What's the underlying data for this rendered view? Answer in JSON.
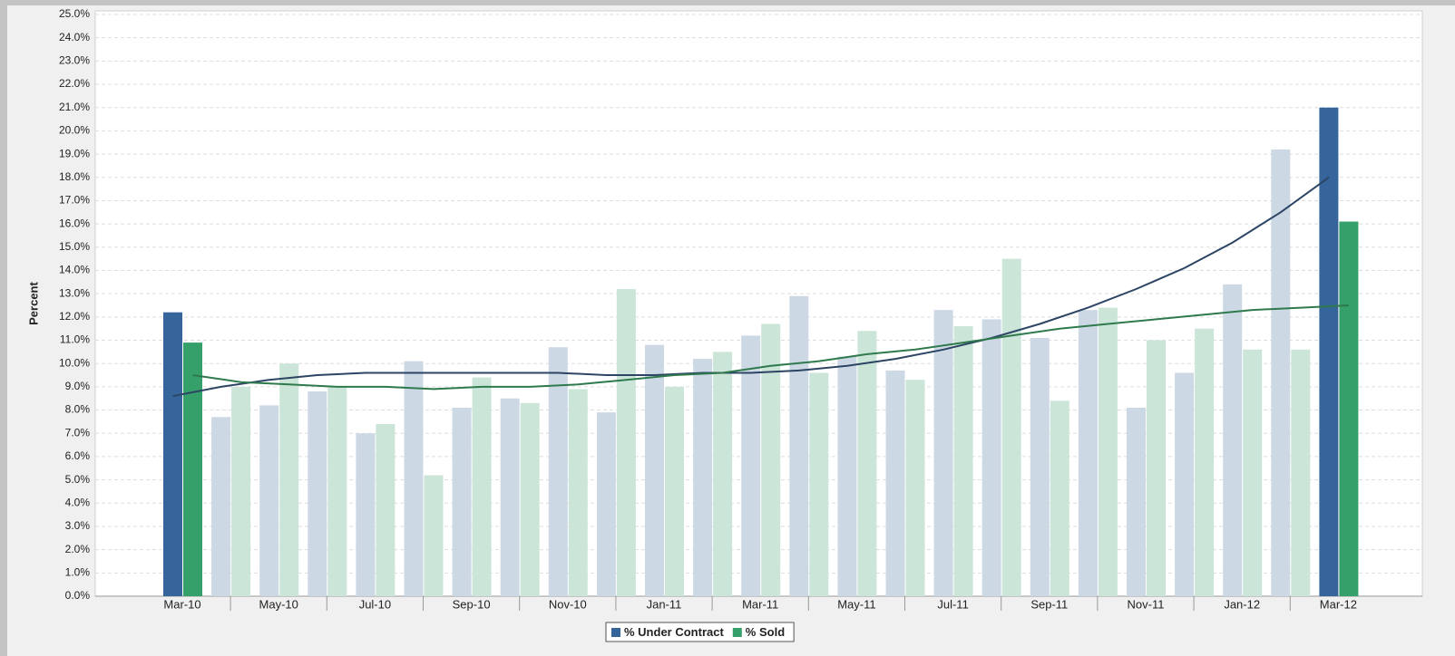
{
  "chart_data": {
    "type": "bar",
    "y_label": "Percent",
    "categories": [
      "Mar-10",
      null,
      "May-10",
      null,
      "Jul-10",
      null,
      "Sep-10",
      null,
      "Nov-10",
      null,
      "Jan-11",
      null,
      "Mar-11",
      null,
      "May-11",
      null,
      "Jul-11",
      null,
      "Sep-11",
      null,
      "Nov-11",
      null,
      "Jan-12",
      null,
      "Mar-12"
    ],
    "series": [
      {
        "name": "% Under Contract",
        "color": "#35659a",
        "trend_color": "#2c4564",
        "bar_colors": [
          "#35659a",
          "#cdd8e5",
          "#cdd8e5",
          "#cdd8e5",
          "#cdd8e5",
          "#cdd8e5",
          "#cdd8e5",
          "#cdd8e5",
          "#cdd8e5",
          "#cdd8e5",
          "#cdd8e5",
          "#cdd8e5",
          "#cdd8e5",
          "#cdd8e5",
          "#cdd8e5",
          "#cdd8e5",
          "#cdd8e5",
          "#cdd8e5",
          "#cdd8e5",
          "#cdd8e5",
          "#cdd8e5",
          "#cdd8e5",
          "#cdd8e5",
          "#cdd8e5",
          "#35659a"
        ],
        "values": [
          12.2,
          7.7,
          8.2,
          8.8,
          7.0,
          10.1,
          8.1,
          8.5,
          10.7,
          7.9,
          10.8,
          10.2,
          11.2,
          12.9,
          10.3,
          9.7,
          12.3,
          11.9,
          11.1,
          12.3,
          8.1,
          9.6,
          13.4,
          19.2,
          21.0
        ],
        "trend_values": [
          8.6,
          9.0,
          9.3,
          9.5,
          9.6,
          9.6,
          9.6,
          9.6,
          9.6,
          9.5,
          9.5,
          9.6,
          9.6,
          9.7,
          9.9,
          10.2,
          10.6,
          11.1,
          11.7,
          12.4,
          13.2,
          14.1,
          15.2,
          16.5,
          18.0
        ]
      },
      {
        "name": "% Sold",
        "color": "#35a06a",
        "trend_color": "#2f7a4c",
        "bar_colors": [
          "#35a06a",
          "#cbe6d8",
          "#cbe6d8",
          "#cbe6d8",
          "#cbe6d8",
          "#cbe6d8",
          "#cbe6d8",
          "#cbe6d8",
          "#cbe6d8",
          "#cbe6d8",
          "#cbe6d8",
          "#cbe6d8",
          "#cbe6d8",
          "#cbe6d8",
          "#cbe6d8",
          "#cbe6d8",
          "#cbe6d8",
          "#cbe6d8",
          "#cbe6d8",
          "#cbe6d8",
          "#cbe6d8",
          "#cbe6d8",
          "#cbe6d8",
          "#cbe6d8",
          "#35a06a"
        ],
        "values": [
          10.9,
          9.0,
          10.0,
          9.0,
          7.4,
          5.2,
          9.4,
          8.3,
          8.9,
          13.2,
          9.0,
          10.5,
          11.7,
          9.6,
          11.4,
          9.3,
          11.6,
          14.5,
          8.4,
          12.4,
          11.0,
          11.5,
          10.6,
          10.6,
          16.1
        ],
        "trend_values": [
          9.5,
          9.2,
          9.1,
          9.0,
          9.0,
          8.9,
          9.0,
          9.0,
          9.1,
          9.3,
          9.5,
          9.6,
          9.9,
          10.1,
          10.4,
          10.6,
          10.9,
          11.2,
          11.5,
          11.7,
          11.9,
          12.1,
          12.3,
          12.4,
          12.5
        ]
      }
    ],
    "ylim": [
      0,
      25
    ],
    "yticks": [
      {
        "value": 0,
        "label": "0.0%"
      },
      {
        "value": 1,
        "label": "1.0%"
      },
      {
        "value": 2,
        "label": "2.0%"
      },
      {
        "value": 3,
        "label": "3.0%"
      },
      {
        "value": 4,
        "label": "4.0%"
      },
      {
        "value": 5,
        "label": "5.0%"
      },
      {
        "value": 6,
        "label": "6.0%"
      },
      {
        "value": 7,
        "label": "7.0%"
      },
      {
        "value": 8,
        "label": "8.0%"
      },
      {
        "value": 9,
        "label": "9.0%"
      },
      {
        "value": 10,
        "label": "10.0%"
      },
      {
        "value": 11,
        "label": "11.0%"
      },
      {
        "value": 12,
        "label": "12.0%"
      },
      {
        "value": 13,
        "label": "13.0%"
      },
      {
        "value": 14,
        "label": "14.0%"
      },
      {
        "value": 15,
        "label": "15.0%"
      },
      {
        "value": 16,
        "label": "16.0%"
      },
      {
        "value": 17,
        "label": "17.0%"
      },
      {
        "value": 18,
        "label": "18.0%"
      },
      {
        "value": 19,
        "label": "19.0%"
      },
      {
        "value": 20,
        "label": "20.0%"
      },
      {
        "value": 21,
        "label": "21.0%"
      },
      {
        "value": 22,
        "label": "22.0%"
      },
      {
        "value": 23,
        "label": "23.0%"
      },
      {
        "value": 24,
        "label": "24.0%"
      },
      {
        "value": 25,
        "label": "25.0%"
      }
    ],
    "grid": true,
    "legend": "bottom"
  }
}
